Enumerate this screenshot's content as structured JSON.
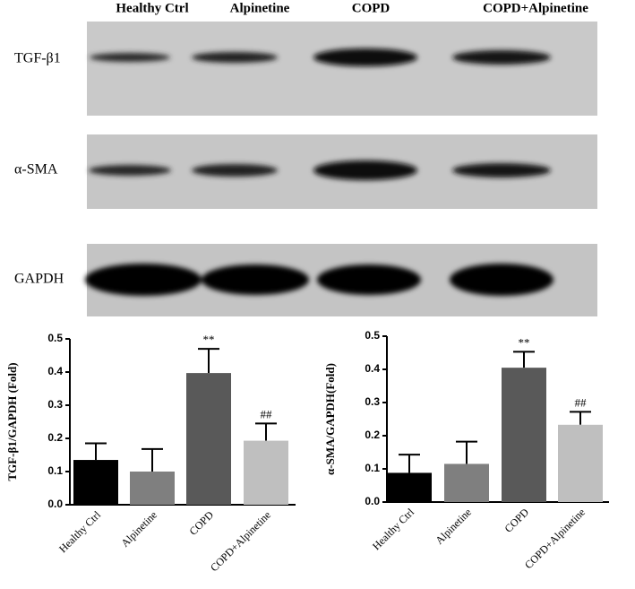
{
  "blot": {
    "lanes": [
      "Healthy Ctrl",
      "Alpinetine",
      "COPD",
      "COPD+Alpinetine"
    ],
    "rows": [
      "TGF-β1",
      "α-SMA",
      "GAPDH"
    ]
  },
  "chart_data": [
    {
      "type": "bar",
      "y_label": "TGF-β1/GAPDH (Fold)",
      "categories": [
        "Healthy Ctrl",
        "Alpinetine",
        "COPD",
        "COPD+Alpinetine"
      ],
      "values": [
        0.135,
        0.1,
        0.397,
        0.193
      ],
      "errors": [
        0.05,
        0.068,
        0.073,
        0.052
      ],
      "annotations": [
        null,
        null,
        "**",
        "##"
      ],
      "colors": [
        "#000000",
        "#7f7f7f",
        "#595959",
        "#bfbfbf"
      ],
      "ylim": [
        0,
        0.5
      ],
      "yticks": [
        {
          "value": 0,
          "label": "0.0"
        },
        0.1,
        0.2,
        0.3,
        0.4,
        0.5
      ]
    },
    {
      "type": "bar",
      "y_label": "α-SMA/GAPDH(Fold)",
      "categories": [
        "Healthy Ctrl",
        "Alpinetine",
        "COPD",
        "COPD+Alpinetine"
      ],
      "values": [
        0.088,
        0.115,
        0.405,
        0.233
      ],
      "errors": [
        0.055,
        0.067,
        0.048,
        0.039
      ],
      "annotations": [
        null,
        null,
        "**",
        "##"
      ],
      "colors": [
        "#000000",
        "#7f7f7f",
        "#595959",
        "#bfbfbf"
      ],
      "ylim": [
        0,
        0.5
      ],
      "yticks": [
        {
          "value": 0,
          "label": "0.0"
        },
        0.1,
        0.2,
        0.3,
        0.4,
        0.5
      ]
    }
  ]
}
